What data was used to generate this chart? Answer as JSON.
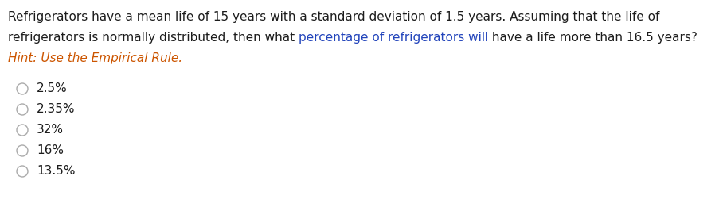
{
  "background_color": "#ffffff",
  "line1": "Refrigerators have a mean life of 15 years with a standard deviation of 1.5 years. Assuming that the life of",
  "line2_p1": "refrigerators is normally distributed, then what ",
  "line2_p2": "percentage of refrigerators will",
  "line2_p3": " have a life more than 16.5 years?",
  "text_color": "#1c1c1c",
  "blue_color": "#2244bb",
  "hint_text": "Hint: Use the Empirical Rule.",
  "hint_color": "#cc5500",
  "options": [
    "2.5%",
    "2.35%",
    "32%",
    "16%",
    "13.5%"
  ],
  "option_color": "#1c1c1c",
  "radio_color": "#aaaaaa",
  "font_size": 11.0,
  "fig_width": 9.04,
  "fig_height": 2.61,
  "dpi": 100
}
